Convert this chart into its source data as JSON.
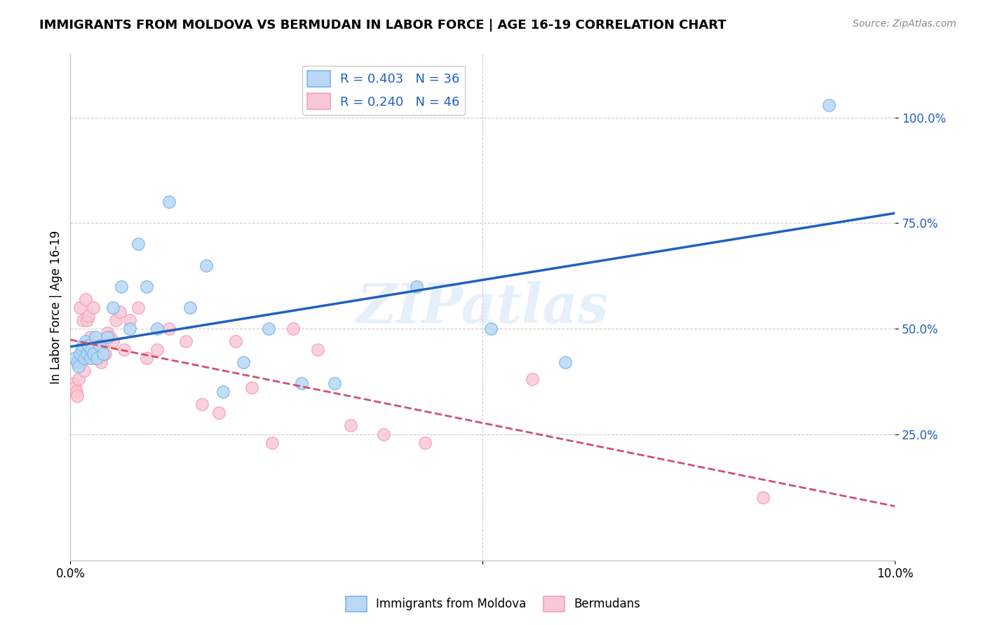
{
  "title": "IMMIGRANTS FROM MOLDOVA VS BERMUDAN IN LABOR FORCE | AGE 16-19 CORRELATION CHART",
  "source": "Source: ZipAtlas.com",
  "ylabel": "In Labor Force | Age 16-19",
  "xlim": [
    0.0,
    10.0
  ],
  "ylim": [
    -5.0,
    115.0
  ],
  "ytick_values": [
    25.0,
    50.0,
    75.0,
    100.0
  ],
  "legend_entry1": "R = 0.403   N = 36",
  "legend_entry2": "R = 0.240   N = 46",
  "legend_label1": "Immigrants from Moldova",
  "legend_label2": "Bermudans",
  "watermark": "ZIPatlas",
  "moldova_color": "#7ab8e8",
  "bermuda_color": "#f4a0b5",
  "moldova_fill": "#b8d8f5",
  "bermuda_fill": "#fac8d5",
  "trend_blue": "#2060c0",
  "trend_pink": "#d05070",
  "moldova_x": [
    0.05,
    0.08,
    0.1,
    0.12,
    0.14,
    0.15,
    0.17,
    0.18,
    0.2,
    0.22,
    0.24,
    0.25,
    0.28,
    0.3,
    0.32,
    0.35,
    0.4,
    0.45,
    0.52,
    0.62,
    0.72,
    0.82,
    0.92,
    1.05,
    1.2,
    1.45,
    1.65,
    1.85,
    2.1,
    2.4,
    2.8,
    3.2,
    4.2,
    5.1,
    6.0,
    9.2
  ],
  "moldova_y": [
    43,
    42,
    41,
    44,
    45,
    46,
    43,
    47,
    44,
    46,
    43,
    45,
    44,
    48,
    43,
    46,
    44,
    48,
    55,
    60,
    50,
    70,
    60,
    50,
    80,
    55,
    65,
    35,
    42,
    50,
    37,
    37,
    60,
    50,
    42,
    103
  ],
  "bermuda_x": [
    0.04,
    0.06,
    0.07,
    0.08,
    0.1,
    0.12,
    0.13,
    0.15,
    0.17,
    0.18,
    0.2,
    0.22,
    0.24,
    0.25,
    0.27,
    0.28,
    0.3,
    0.32,
    0.35,
    0.37,
    0.4,
    0.42,
    0.45,
    0.48,
    0.52,
    0.55,
    0.6,
    0.65,
    0.72,
    0.82,
    0.92,
    1.05,
    1.2,
    1.4,
    1.6,
    1.8,
    2.0,
    2.2,
    2.45,
    2.7,
    3.0,
    3.4,
    3.8,
    4.3,
    5.6,
    8.4
  ],
  "bermuda_y": [
    37,
    36,
    35,
    34,
    38,
    55,
    42,
    52,
    40,
    57,
    52,
    53,
    48,
    44,
    46,
    55,
    43,
    45,
    43,
    42,
    46,
    44,
    49,
    48,
    47,
    52,
    54,
    45,
    52,
    55,
    43,
    45,
    50,
    47,
    32,
    30,
    47,
    36,
    23,
    50,
    45,
    27,
    25,
    23,
    38,
    10
  ],
  "grid_color": "#cccccc",
  "label_color": "#2060c0",
  "background_color": "#ffffff"
}
